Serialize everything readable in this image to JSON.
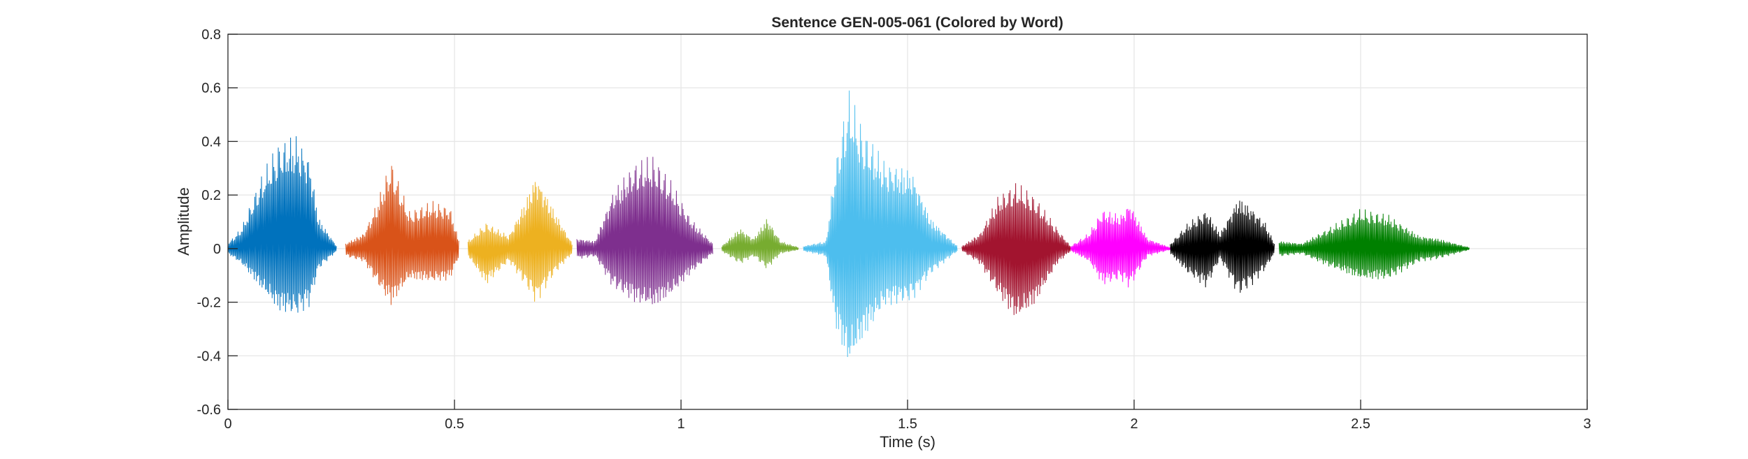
{
  "chart_data": {
    "type": "line",
    "title": "Sentence GEN-005-061 (Colored by Word)",
    "xlabel": "Time (s)",
    "ylabel": "Amplitude",
    "xlim": [
      0,
      3
    ],
    "ylim": [
      -0.6,
      0.8
    ],
    "xticks": [
      0,
      0.5,
      1,
      1.5,
      2,
      2.5,
      3
    ],
    "xtick_labels": [
      "0",
      "0.5",
      "1",
      "1.5",
      "2",
      "2.5",
      "3"
    ],
    "yticks": [
      -0.6,
      -0.4,
      -0.2,
      0,
      0.2,
      0.4,
      0.6,
      0.8
    ],
    "ytick_labels": [
      "-0.6",
      "-0.4",
      "-0.2",
      "0",
      "0.2",
      "0.4",
      "0.6",
      "0.8"
    ],
    "grid": true,
    "legend": "none",
    "series": [
      {
        "color": "#0072BD",
        "x_start": 0.0,
        "x_end": 0.24,
        "envelope": [
          {
            "t": 0.0,
            "upper": 0.02,
            "lower": -0.02
          },
          {
            "t": 0.03,
            "upper": 0.08,
            "lower": -0.06
          },
          {
            "t": 0.07,
            "upper": 0.26,
            "lower": -0.15
          },
          {
            "t": 0.11,
            "upper": 0.4,
            "lower": -0.24
          },
          {
            "t": 0.15,
            "upper": 0.43,
            "lower": -0.26
          },
          {
            "t": 0.18,
            "upper": 0.35,
            "lower": -0.22
          },
          {
            "t": 0.2,
            "upper": 0.12,
            "lower": -0.08
          },
          {
            "t": 0.24,
            "upper": 0.01,
            "lower": -0.01
          }
        ]
      },
      {
        "color": "#D95319",
        "x_start": 0.26,
        "x_end": 0.51,
        "envelope": [
          {
            "t": 0.26,
            "upper": 0.02,
            "lower": -0.03
          },
          {
            "t": 0.3,
            "upper": 0.06,
            "lower": -0.05
          },
          {
            "t": 0.33,
            "upper": 0.18,
            "lower": -0.14
          },
          {
            "t": 0.36,
            "upper": 0.34,
            "lower": -0.22
          },
          {
            "t": 0.4,
            "upper": 0.14,
            "lower": -0.12
          },
          {
            "t": 0.45,
            "upper": 0.18,
            "lower": -0.13
          },
          {
            "t": 0.49,
            "upper": 0.16,
            "lower": -0.12
          },
          {
            "t": 0.51,
            "upper": 0.03,
            "lower": -0.03
          }
        ]
      },
      {
        "color": "#EDB120",
        "x_start": 0.53,
        "x_end": 0.76,
        "envelope": [
          {
            "t": 0.53,
            "upper": 0.03,
            "lower": -0.03
          },
          {
            "t": 0.57,
            "upper": 0.1,
            "lower": -0.14
          },
          {
            "t": 0.62,
            "upper": 0.05,
            "lower": -0.05
          },
          {
            "t": 0.66,
            "upper": 0.2,
            "lower": -0.15
          },
          {
            "t": 0.68,
            "upper": 0.29,
            "lower": -0.21
          },
          {
            "t": 0.72,
            "upper": 0.15,
            "lower": -0.1
          },
          {
            "t": 0.76,
            "upper": 0.02,
            "lower": -0.02
          }
        ]
      },
      {
        "color": "#7E2F8E",
        "x_start": 0.77,
        "x_end": 1.07,
        "envelope": [
          {
            "t": 0.77,
            "upper": 0.04,
            "lower": -0.04
          },
          {
            "t": 0.81,
            "upper": 0.03,
            "lower": -0.03
          },
          {
            "t": 0.85,
            "upper": 0.22,
            "lower": -0.15
          },
          {
            "t": 0.9,
            "upper": 0.33,
            "lower": -0.21
          },
          {
            "t": 0.94,
            "upper": 0.35,
            "lower": -0.23
          },
          {
            "t": 0.98,
            "upper": 0.25,
            "lower": -0.18
          },
          {
            "t": 1.02,
            "upper": 0.12,
            "lower": -0.1
          },
          {
            "t": 1.07,
            "upper": 0.02,
            "lower": -0.02
          }
        ]
      },
      {
        "color": "#77AC30",
        "x_start": 1.09,
        "x_end": 1.26,
        "envelope": [
          {
            "t": 1.09,
            "upper": 0.01,
            "lower": -0.01
          },
          {
            "t": 1.13,
            "upper": 0.08,
            "lower": -0.06
          },
          {
            "t": 1.16,
            "upper": 0.04,
            "lower": -0.03
          },
          {
            "t": 1.19,
            "upper": 0.12,
            "lower": -0.08
          },
          {
            "t": 1.22,
            "upper": 0.03,
            "lower": -0.02
          },
          {
            "t": 1.26,
            "upper": 0.005,
            "lower": -0.005
          }
        ]
      },
      {
        "color": "#4DBEEE",
        "x_start": 1.27,
        "x_end": 1.61,
        "envelope": [
          {
            "t": 1.27,
            "upper": 0.01,
            "lower": -0.01
          },
          {
            "t": 1.32,
            "upper": 0.03,
            "lower": -0.03
          },
          {
            "t": 1.34,
            "upper": 0.32,
            "lower": -0.3
          },
          {
            "t": 1.37,
            "upper": 0.6,
            "lower": -0.46
          },
          {
            "t": 1.4,
            "upper": 0.46,
            "lower": -0.36
          },
          {
            "t": 1.45,
            "upper": 0.33,
            "lower": -0.22
          },
          {
            "t": 1.51,
            "upper": 0.3,
            "lower": -0.2
          },
          {
            "t": 1.55,
            "upper": 0.12,
            "lower": -0.1
          },
          {
            "t": 1.61,
            "upper": 0.01,
            "lower": -0.01
          }
        ]
      },
      {
        "color": "#A2142F",
        "x_start": 1.62,
        "x_end": 1.86,
        "envelope": [
          {
            "t": 1.62,
            "upper": 0.01,
            "lower": -0.01
          },
          {
            "t": 1.66,
            "upper": 0.06,
            "lower": -0.06
          },
          {
            "t": 1.7,
            "upper": 0.2,
            "lower": -0.18
          },
          {
            "t": 1.74,
            "upper": 0.25,
            "lower": -0.28
          },
          {
            "t": 1.78,
            "upper": 0.2,
            "lower": -0.22
          },
          {
            "t": 1.83,
            "upper": 0.08,
            "lower": -0.06
          },
          {
            "t": 1.86,
            "upper": 0.01,
            "lower": -0.01
          }
        ]
      },
      {
        "color": "#FF00FF",
        "x_start": 1.86,
        "x_end": 2.08,
        "envelope": [
          {
            "t": 1.86,
            "upper": 0.01,
            "lower": -0.01
          },
          {
            "t": 1.9,
            "upper": 0.06,
            "lower": -0.05
          },
          {
            "t": 1.93,
            "upper": 0.15,
            "lower": -0.14
          },
          {
            "t": 1.97,
            "upper": 0.13,
            "lower": -0.12
          },
          {
            "t": 1.99,
            "upper": 0.18,
            "lower": -0.15
          },
          {
            "t": 2.03,
            "upper": 0.04,
            "lower": -0.03
          },
          {
            "t": 2.08,
            "upper": 0.005,
            "lower": -0.005
          }
        ]
      },
      {
        "color": "#000000",
        "x_start": 2.08,
        "x_end": 2.31,
        "envelope": [
          {
            "t": 2.08,
            "upper": 0.02,
            "lower": -0.02
          },
          {
            "t": 2.12,
            "upper": 0.1,
            "lower": -0.1
          },
          {
            "t": 2.16,
            "upper": 0.15,
            "lower": -0.15
          },
          {
            "t": 2.19,
            "upper": 0.06,
            "lower": -0.04
          },
          {
            "t": 2.23,
            "upper": 0.2,
            "lower": -0.18
          },
          {
            "t": 2.26,
            "upper": 0.16,
            "lower": -0.14
          },
          {
            "t": 2.29,
            "upper": 0.1,
            "lower": -0.08
          },
          {
            "t": 2.31,
            "upper": 0.02,
            "lower": -0.02
          }
        ]
      },
      {
        "color": "#008000",
        "x_start": 2.32,
        "x_end": 2.74,
        "envelope": [
          {
            "t": 2.32,
            "upper": 0.03,
            "lower": -0.03
          },
          {
            "t": 2.37,
            "upper": 0.02,
            "lower": -0.02
          },
          {
            "t": 2.43,
            "upper": 0.08,
            "lower": -0.07
          },
          {
            "t": 2.5,
            "upper": 0.15,
            "lower": -0.12
          },
          {
            "t": 2.56,
            "upper": 0.13,
            "lower": -0.12
          },
          {
            "t": 2.63,
            "upper": 0.05,
            "lower": -0.05
          },
          {
            "t": 2.67,
            "upper": 0.04,
            "lower": -0.04
          },
          {
            "t": 2.74,
            "upper": 0.005,
            "lower": -0.005
          }
        ]
      }
    ]
  }
}
